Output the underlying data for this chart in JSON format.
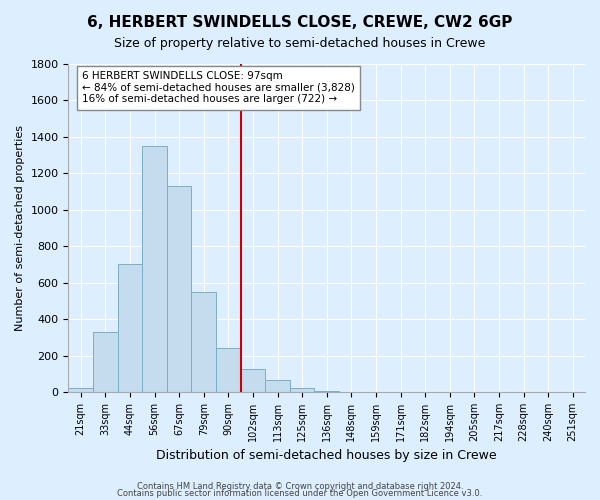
{
  "title": "6, HERBERT SWINDELLS CLOSE, CREWE, CW2 6GP",
  "subtitle": "Size of property relative to semi-detached houses in Crewe",
  "xlabel": "Distribution of semi-detached houses by size in Crewe",
  "ylabel": "Number of semi-detached properties",
  "bin_labels": [
    "21sqm",
    "33sqm",
    "44sqm",
    "56sqm",
    "67sqm",
    "79sqm",
    "90sqm",
    "102sqm",
    "113sqm",
    "125sqm",
    "136sqm",
    "148sqm",
    "159sqm",
    "171sqm",
    "182sqm",
    "194sqm",
    "205sqm",
    "217sqm",
    "228sqm",
    "240sqm",
    "251sqm"
  ],
  "bar_heights": [
    20,
    330,
    700,
    1350,
    1130,
    550,
    240,
    125,
    68,
    25,
    5,
    2,
    1,
    0,
    0,
    0,
    0,
    0,
    0,
    0,
    0
  ],
  "bar_color": "#c5dcee",
  "bar_edge_color": "#7aafc8",
  "vline_x": 6.5,
  "vline_color": "#cc0000",
  "annotation_title": "6 HERBERT SWINDELLS CLOSE: 97sqm",
  "annotation_line1": "← 84% of semi-detached houses are smaller (3,828)",
  "annotation_line2": "16% of semi-detached houses are larger (722) →",
  "annotation_box_color": "#ffffff",
  "annotation_box_edge": "#888888",
  "ylim": [
    0,
    1800
  ],
  "yticks": [
    0,
    200,
    400,
    600,
    800,
    1000,
    1200,
    1400,
    1600,
    1800
  ],
  "footer1": "Contains HM Land Registry data © Crown copyright and database right 2024.",
  "footer2": "Contains public sector information licensed under the Open Government Licence v3.0.",
  "background_color": "#ddeeff"
}
